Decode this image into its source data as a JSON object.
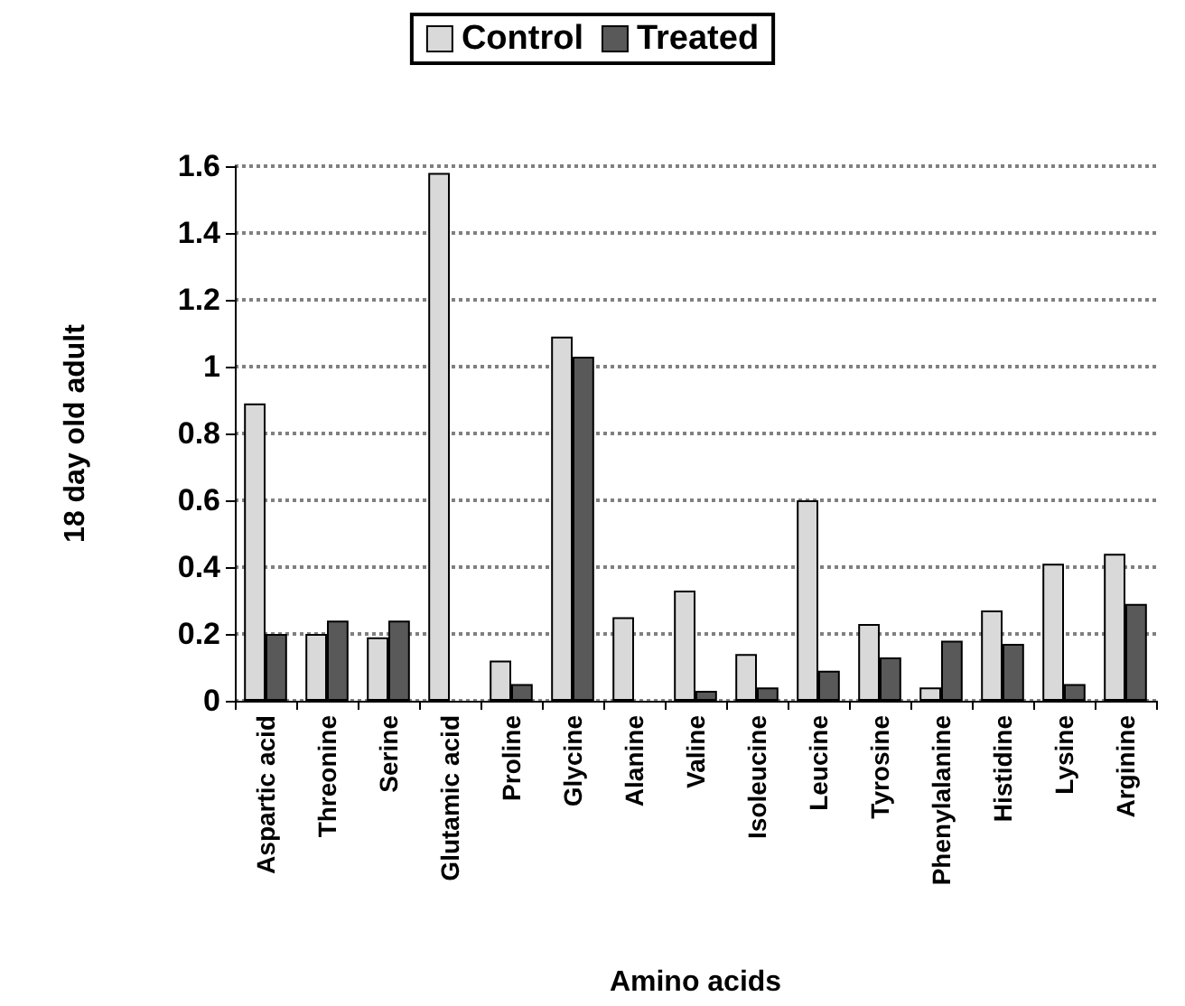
{
  "chart_data": {
    "type": "bar",
    "xlabel": "Amino acids",
    "ylabel": "18 day old adult",
    "categories": [
      "Aspartic acid",
      "Threonine",
      "Serine",
      "Glutamic acid",
      "Proline",
      "Glycine",
      "Alanine",
      "Valine",
      "Isoleucine",
      "Leucine",
      "Tyrosine",
      "Phenylalanine",
      "Histidine",
      "Lysine",
      "Arginine"
    ],
    "series": [
      {
        "name": "Control",
        "color": "#d9d9d9",
        "values": [
          0.89,
          0.2,
          0.19,
          1.58,
          0.12,
          1.09,
          0.25,
          0.33,
          0.14,
          0.6,
          0.23,
          0.04,
          0.27,
          0.41,
          0.44
        ]
      },
      {
        "name": "Treated",
        "color": "#595959",
        "values": [
          0.2,
          0.24,
          0.24,
          null,
          0.05,
          1.03,
          null,
          0.03,
          0.04,
          0.09,
          0.13,
          0.18,
          0.17,
          0.05,
          0.29
        ]
      }
    ],
    "ylim": [
      0,
      1.6
    ],
    "yticks": [
      0,
      0.2,
      0.4,
      0.6,
      0.8,
      1,
      1.2,
      1.4,
      1.6
    ],
    "grid": "y",
    "legend": "top"
  }
}
